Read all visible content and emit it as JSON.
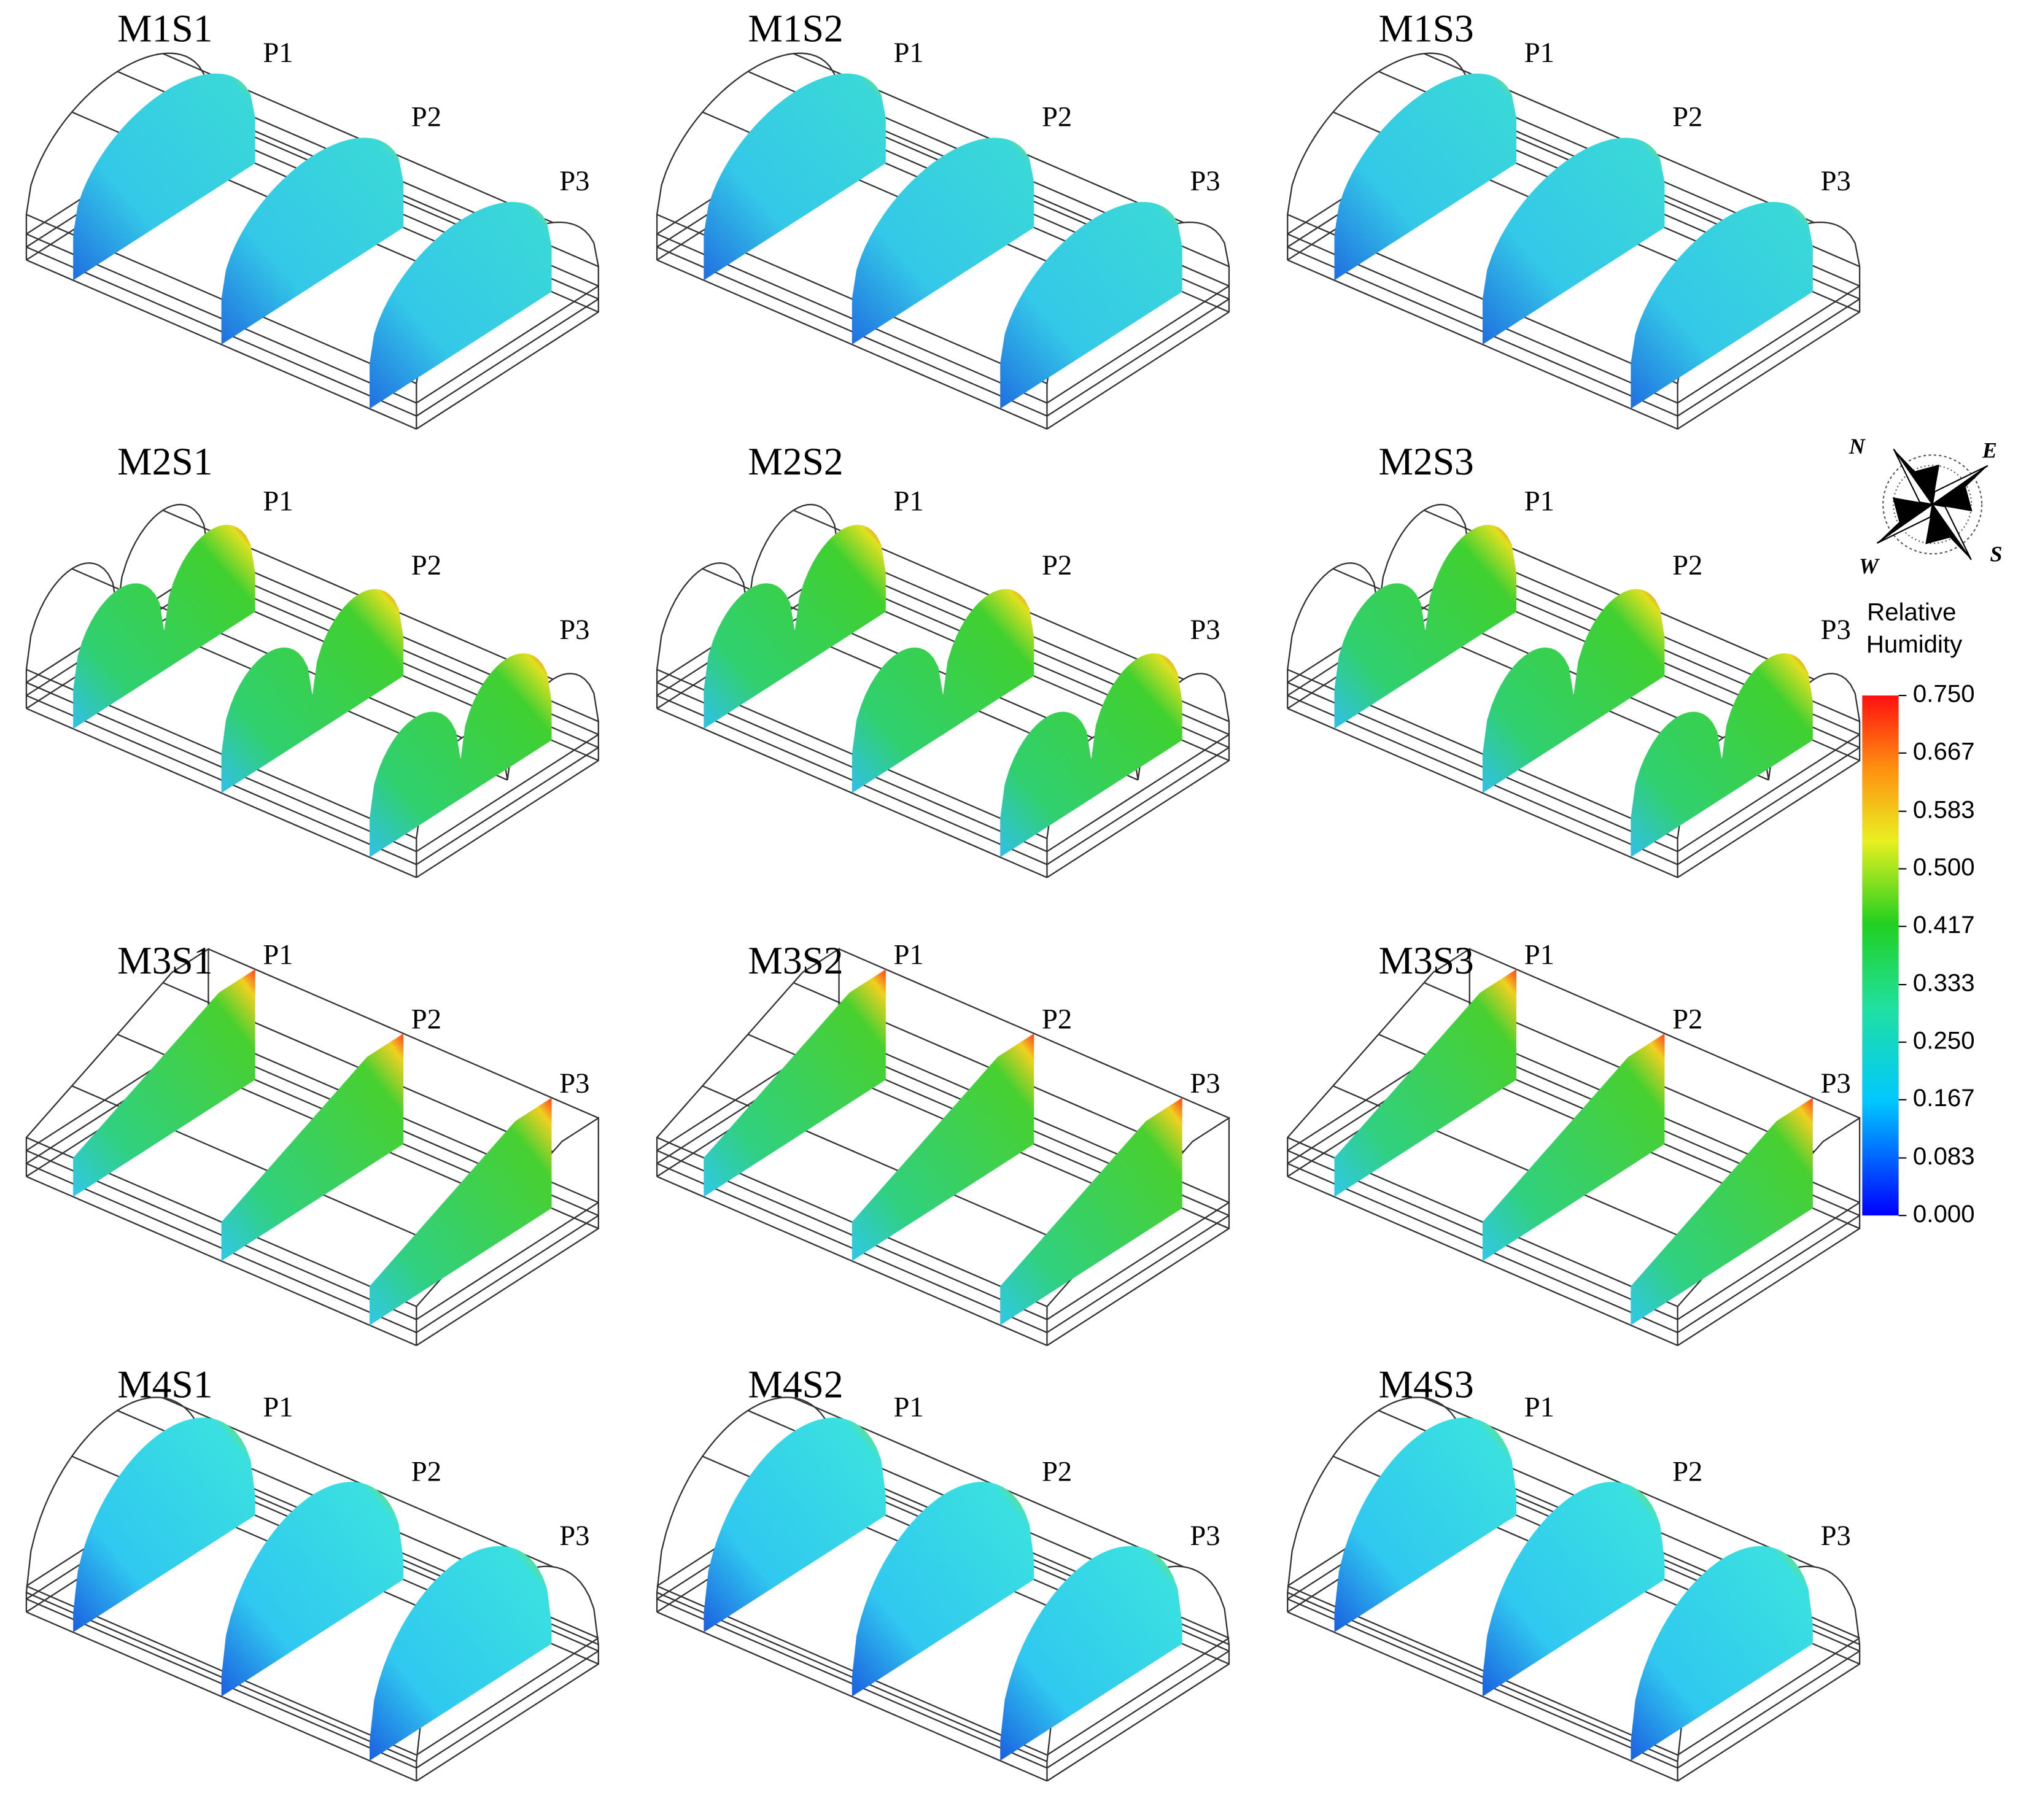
{
  "panels": [
    {
      "title": "M1S1",
      "sections": [
        "P1",
        "P2",
        "P3"
      ]
    },
    {
      "title": "M1S2",
      "sections": [
        "P1",
        "P2",
        "P3"
      ]
    },
    {
      "title": "M1S3",
      "sections": [
        "P1",
        "P2",
        "P3"
      ]
    },
    {
      "title": "M2S1",
      "sections": [
        "P1",
        "P2",
        "P3"
      ]
    },
    {
      "title": "M2S2",
      "sections": [
        "P1",
        "P2",
        "P3"
      ]
    },
    {
      "title": "M2S3",
      "sections": [
        "P1",
        "P2",
        "P3"
      ]
    },
    {
      "title": "M3S1",
      "sections": [
        "P1",
        "P2",
        "P3"
      ]
    },
    {
      "title": "M3S2",
      "sections": [
        "P1",
        "P2",
        "P3"
      ]
    },
    {
      "title": "M3S3",
      "sections": [
        "P1",
        "P2",
        "P3"
      ]
    },
    {
      "title": "M4S1",
      "sections": [
        "P1",
        "P2",
        "P3"
      ]
    },
    {
      "title": "M4S2",
      "sections": [
        "P1",
        "P2",
        "P3"
      ]
    },
    {
      "title": "M4S3",
      "sections": [
        "P1",
        "P2",
        "P3"
      ]
    }
  ],
  "compass": {
    "north": "N",
    "east": "E",
    "south": "S",
    "west": "W"
  },
  "colorbar": {
    "title": [
      "Relative",
      "Humidity"
    ],
    "ticks": [
      {
        "value": 0,
        "label": "0.000"
      },
      {
        "value": 0.083,
        "label": "0.083"
      },
      {
        "value": 0.167,
        "label": "0.167"
      },
      {
        "value": 0.25,
        "label": "0.250"
      },
      {
        "value": 0.333,
        "label": "0.333"
      },
      {
        "value": 0.417,
        "label": "0.417"
      },
      {
        "value": 0.5,
        "label": "0.500"
      },
      {
        "value": 0.583,
        "label": "0.583"
      },
      {
        "value": 0.667,
        "label": "0.667"
      },
      {
        "value": 0.75,
        "label": "0.750"
      }
    ]
  }
}
